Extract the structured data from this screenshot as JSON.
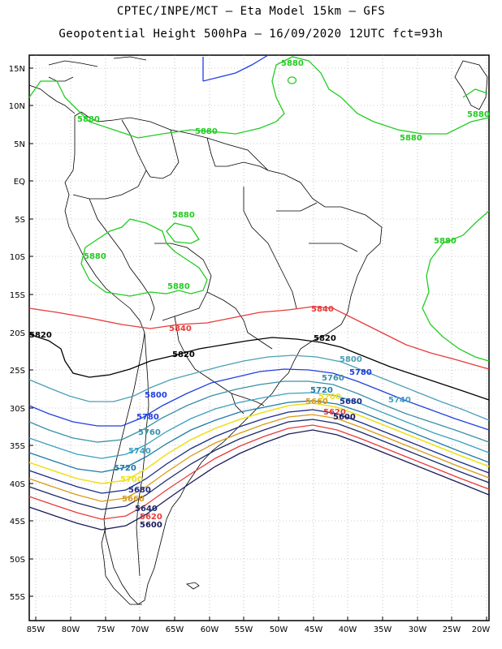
{
  "header": {
    "line1": "CPTEC/INPE/MCT –  Eta Model 15km – GFS",
    "line2": "Geopotential Height 500hPa – 16/09/2020 12UTC fct=93h"
  },
  "axes": {
    "lat_labels": [
      "15N",
      "10N",
      "5N",
      "EQ",
      "5S",
      "10S",
      "15S",
      "20S",
      "25S",
      "30S",
      "35S",
      "40S",
      "45S",
      "50S",
      "55S"
    ],
    "lon_labels": [
      "85W",
      "80W",
      "75W",
      "70W",
      "65W",
      "60W",
      "55W",
      "50W",
      "45W",
      "40W",
      "35W",
      "30W",
      "25W",
      "20W"
    ]
  },
  "contours": [
    {
      "value": 5880,
      "color": "#22cc22"
    },
    {
      "value": 5840,
      "color": "#e83a3a"
    },
    {
      "value": 5820,
      "color": "#000000"
    },
    {
      "value": 5800,
      "color": "#4a9fb5"
    },
    {
      "value": 5780,
      "color": "#1f3fe0"
    },
    {
      "value": 5760,
      "color": "#3a8fa8"
    },
    {
      "value": 5740,
      "color": "#3aa0c0"
    },
    {
      "value": 5720,
      "color": "#1f7aa8"
    },
    {
      "value": 5700,
      "color": "#f0e020"
    },
    {
      "value": 5680,
      "color": "#1a2a8a"
    },
    {
      "value": 5660,
      "color": "#d89a1a"
    },
    {
      "value": 5640,
      "color": "#1a2a6a"
    },
    {
      "value": 5620,
      "color": "#e83a3a"
    },
    {
      "value": 5600,
      "color": "#1a1a5a"
    }
  ],
  "labels": {
    "l5880a": "5880",
    "l5880b": "5880",
    "l5880c": "5880",
    "l5880d": "5880",
    "l5880e": "5880",
    "l5880f": "5880",
    "l5880g": "5880",
    "l5880h": "5880",
    "l5840a": "5840",
    "l5840b": "5840",
    "l5820a": "5820",
    "l5820b": "5820",
    "l5820c": "5820",
    "l5800a": "5800",
    "l5800b": "5800",
    "l5780a": "5780",
    "l5780b": "5780",
    "l5760a": "5760",
    "l5760b": "5760",
    "l5740a": "5740",
    "l5740b": "5740",
    "l5720a": "5720",
    "l5720b": "5720",
    "l5700a": "5700",
    "l5700b": "5700",
    "l5680a": "5680",
    "l5680b": "5680",
    "l5660a": "5660",
    "l5660b": "5660",
    "l5640a": "5640",
    "l5620a": "5620",
    "l5620b": "5620",
    "l5600a": "5600",
    "l5600b": "5600"
  }
}
